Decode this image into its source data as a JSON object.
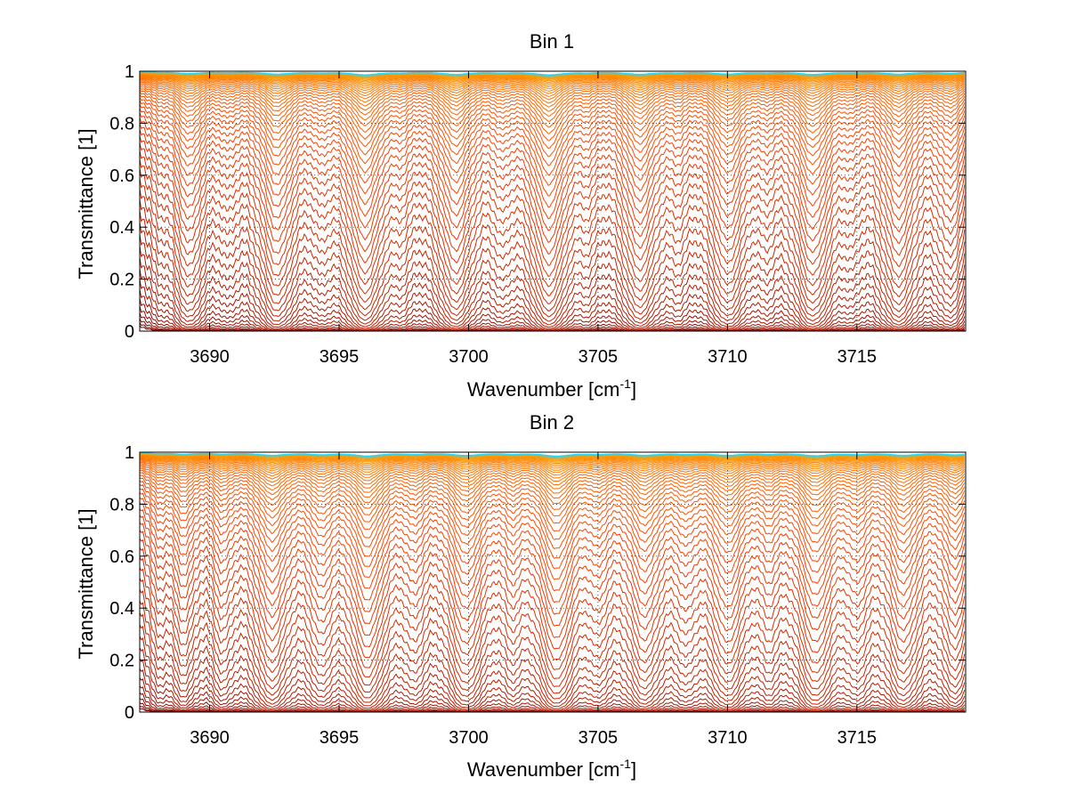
{
  "colors": {
    "background": "#ffffff",
    "axis": "#000000",
    "grid": "#000000",
    "ramp_low": "#7f0000",
    "ramp_mid": "#ff4000",
    "ramp_high": "#ff9a00",
    "ramp_top": "#22d8ff"
  },
  "chart_data": [
    {
      "type": "line",
      "title": "Bin 1",
      "xlabel": "Wavenumber [cm",
      "xlabel_superscript": "-1",
      "xlabel_suffix": "]",
      "ylabel": "Transmittance [1]",
      "xlim": [
        3687.3,
        3719.2
      ],
      "ylim": [
        0,
        1
      ],
      "xticks": [
        3690,
        3695,
        3700,
        3705,
        3710,
        3715
      ],
      "xtick_labels": [
        "3690",
        "3695",
        "3700",
        "3705",
        "3710",
        "3715"
      ],
      "yticks": [
        0,
        0.2,
        0.4,
        0.6,
        0.8,
        1
      ],
      "ytick_labels": [
        "0",
        "0.2",
        "0.4",
        "0.6",
        "0.8",
        "1"
      ],
      "grid": true,
      "grid_style": "dotted",
      "n_series": 60,
      "colormap": "jet (dark red for high absorption → orange → yellow/cyan near 1)",
      "absorption_lines": [
        {
          "x": 3688.0,
          "depth": 0.35,
          "width": 0.12
        },
        {
          "x": 3689.2,
          "depth": 1.6,
          "width": 0.18
        },
        {
          "x": 3690.7,
          "depth": 0.5,
          "width": 0.14
        },
        {
          "x": 3692.6,
          "depth": 2.1,
          "width": 0.2
        },
        {
          "x": 3694.3,
          "depth": 0.6,
          "width": 0.14
        },
        {
          "x": 3696.0,
          "depth": 2.7,
          "width": 0.2
        },
        {
          "x": 3697.4,
          "depth": 0.55,
          "width": 0.13
        },
        {
          "x": 3699.5,
          "depth": 2.3,
          "width": 0.2
        },
        {
          "x": 3701.3,
          "depth": 0.7,
          "width": 0.14
        },
        {
          "x": 3703.1,
          "depth": 2.8,
          "width": 0.2
        },
        {
          "x": 3704.6,
          "depth": 0.55,
          "width": 0.13
        },
        {
          "x": 3706.6,
          "depth": 2.2,
          "width": 0.2
        },
        {
          "x": 3708.1,
          "depth": 0.6,
          "width": 0.14
        },
        {
          "x": 3710.0,
          "depth": 2.0,
          "width": 0.2
        },
        {
          "x": 3711.5,
          "depth": 0.55,
          "width": 0.13
        },
        {
          "x": 3713.3,
          "depth": 2.4,
          "width": 0.2
        },
        {
          "x": 3714.8,
          "depth": 0.5,
          "width": 0.13
        },
        {
          "x": 3716.6,
          "depth": 2.1,
          "width": 0.2
        },
        {
          "x": 3718.6,
          "depth": 1.3,
          "width": 0.18
        }
      ]
    },
    {
      "type": "line",
      "title": "Bin 2",
      "xlabel": "Wavenumber [cm",
      "xlabel_superscript": "-1",
      "xlabel_suffix": "]",
      "ylabel": "Transmittance [1]",
      "xlim": [
        3687.3,
        3719.2
      ],
      "ylim": [
        0,
        1
      ],
      "xticks": [
        3690,
        3695,
        3700,
        3705,
        3710,
        3715
      ],
      "xtick_labels": [
        "3690",
        "3695",
        "3700",
        "3705",
        "3710",
        "3715"
      ],
      "yticks": [
        0,
        0.2,
        0.4,
        0.6,
        0.8,
        1
      ],
      "ytick_labels": [
        "0",
        "0.2",
        "0.4",
        "0.6",
        "0.8",
        "1"
      ],
      "grid": true,
      "grid_style": "dotted",
      "n_series": 60,
      "colormap": "jet (dark red for high absorption → orange → yellow/cyan near 1)",
      "absorption_lines": [
        {
          "x": 3688.0,
          "depth": 0.6,
          "width": 0.12
        },
        {
          "x": 3689.0,
          "depth": 1.2,
          "width": 0.15
        },
        {
          "x": 3690.5,
          "depth": 1.0,
          "width": 0.14
        },
        {
          "x": 3692.4,
          "depth": 2.2,
          "width": 0.2
        },
        {
          "x": 3694.3,
          "depth": 1.4,
          "width": 0.16
        },
        {
          "x": 3696.1,
          "depth": 2.8,
          "width": 0.2
        },
        {
          "x": 3697.9,
          "depth": 1.0,
          "width": 0.15
        },
        {
          "x": 3699.9,
          "depth": 2.3,
          "width": 0.2
        },
        {
          "x": 3701.7,
          "depth": 0.9,
          "width": 0.14
        },
        {
          "x": 3703.4,
          "depth": 2.9,
          "width": 0.2
        },
        {
          "x": 3705.0,
          "depth": 1.0,
          "width": 0.15
        },
        {
          "x": 3706.8,
          "depth": 2.1,
          "width": 0.2
        },
        {
          "x": 3708.4,
          "depth": 1.0,
          "width": 0.15
        },
        {
          "x": 3710.0,
          "depth": 2.2,
          "width": 0.2
        },
        {
          "x": 3711.6,
          "depth": 0.9,
          "width": 0.14
        },
        {
          "x": 3713.4,
          "depth": 2.6,
          "width": 0.2
        },
        {
          "x": 3715.0,
          "depth": 1.2,
          "width": 0.16
        },
        {
          "x": 3716.8,
          "depth": 2.2,
          "width": 0.2
        },
        {
          "x": 3718.8,
          "depth": 1.8,
          "width": 0.18
        }
      ]
    }
  ]
}
